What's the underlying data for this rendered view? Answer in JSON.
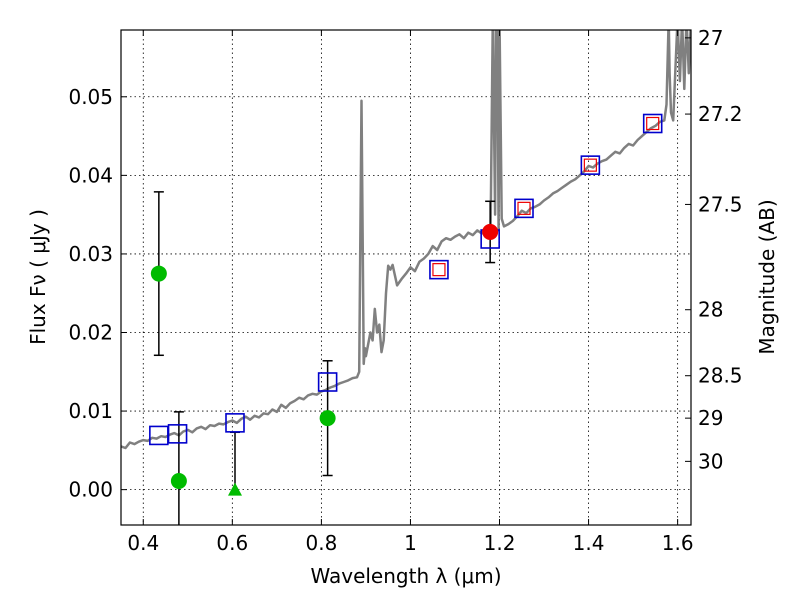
{
  "chart_data": {
    "type": "scatter",
    "title": "",
    "xlabel": "Wavelength  λ (μm)",
    "ylabel": "Flux  Fν  ( μJy )",
    "ylabel_right": "Magnitude (AB)",
    "xlim": [
      0.35,
      1.63
    ],
    "ylim": [
      -0.0045,
      0.0585
    ],
    "grid": true,
    "x_ticks": [
      0.4,
      0.6,
      0.8,
      1.0,
      1.2,
      1.4,
      1.6
    ],
    "x_tick_labels": [
      "0.4",
      "0.6",
      "0.8",
      "1",
      "1.2",
      "1.4",
      "1.6"
    ],
    "y_ticks": [
      0.0,
      0.01,
      0.02,
      0.03,
      0.04,
      0.05
    ],
    "y_tick_labels": [
      "0.00",
      "0.01",
      "0.02",
      "0.03",
      "0.04",
      "0.05"
    ],
    "mag_ticks": [
      {
        "label": "27",
        "flux": 0.0575
      },
      {
        "label": "27.2",
        "flux": 0.0478
      },
      {
        "label": "27.5",
        "flux": 0.0363
      },
      {
        "label": "28",
        "flux": 0.0229
      },
      {
        "label": "28.5",
        "flux": 0.0145
      },
      {
        "label": "29",
        "flux": 0.0091
      },
      {
        "label": "30",
        "flux": 0.0036
      }
    ],
    "colors": {
      "model": "#808080",
      "model_photometry": "#0000cc",
      "observed": "#00bb00",
      "observed_red": "#ee0000",
      "errorbar": "#000000"
    },
    "series": [
      {
        "name": "model spectrum",
        "kind": "line",
        "x": [
          0.35,
          0.36,
          0.37,
          0.38,
          0.39,
          0.4,
          0.41,
          0.42,
          0.43,
          0.44,
          0.45,
          0.46,
          0.47,
          0.48,
          0.49,
          0.5,
          0.51,
          0.52,
          0.53,
          0.54,
          0.55,
          0.56,
          0.57,
          0.58,
          0.59,
          0.6,
          0.61,
          0.62,
          0.63,
          0.64,
          0.65,
          0.66,
          0.67,
          0.68,
          0.69,
          0.7,
          0.71,
          0.72,
          0.73,
          0.74,
          0.75,
          0.76,
          0.77,
          0.78,
          0.79,
          0.8,
          0.81,
          0.82,
          0.83,
          0.84,
          0.85,
          0.86,
          0.87,
          0.88,
          0.885,
          0.89,
          0.893,
          0.895,
          0.898,
          0.9,
          0.91,
          0.915,
          0.92,
          0.925,
          0.93,
          0.935,
          0.94,
          0.945,
          0.95,
          0.955,
          0.96,
          0.97,
          0.98,
          0.99,
          1.0,
          1.01,
          1.02,
          1.03,
          1.04,
          1.05,
          1.06,
          1.07,
          1.08,
          1.09,
          1.1,
          1.11,
          1.12,
          1.13,
          1.14,
          1.15,
          1.16,
          1.17,
          1.18,
          1.185,
          1.19,
          1.192,
          1.195,
          1.198,
          1.2,
          1.205,
          1.21,
          1.22,
          1.23,
          1.24,
          1.25,
          1.26,
          1.27,
          1.28,
          1.29,
          1.3,
          1.31,
          1.32,
          1.33,
          1.34,
          1.35,
          1.36,
          1.37,
          1.38,
          1.39,
          1.4,
          1.41,
          1.42,
          1.43,
          1.44,
          1.45,
          1.46,
          1.47,
          1.48,
          1.49,
          1.5,
          1.51,
          1.52,
          1.53,
          1.54,
          1.55,
          1.56,
          1.57,
          1.575,
          1.58,
          1.582,
          1.585,
          1.59,
          1.6,
          1.605,
          1.61,
          1.615,
          1.62,
          1.625,
          1.63
        ],
        "y": [
          0.0055,
          0.0053,
          0.006,
          0.0058,
          0.0061,
          0.0063,
          0.0062,
          0.0066,
          0.0065,
          0.0068,
          0.0067,
          0.007,
          0.0072,
          0.0069,
          0.0074,
          0.0076,
          0.0073,
          0.0078,
          0.008,
          0.0077,
          0.0082,
          0.0081,
          0.0084,
          0.0083,
          0.0086,
          0.0088,
          0.0085,
          0.009,
          0.0093,
          0.0089,
          0.0094,
          0.0092,
          0.0097,
          0.0096,
          0.0102,
          0.0099,
          0.0108,
          0.0104,
          0.011,
          0.0113,
          0.0117,
          0.0115,
          0.012,
          0.0122,
          0.0121,
          0.0125,
          0.0127,
          0.013,
          0.0132,
          0.0135,
          0.0137,
          0.0139,
          0.0142,
          0.0143,
          0.015,
          0.0495,
          0.03,
          0.016,
          0.018,
          0.017,
          0.02,
          0.019,
          0.023,
          0.02,
          0.021,
          0.0175,
          0.019,
          0.025,
          0.0285,
          0.028,
          0.0286,
          0.026,
          0.0268,
          0.0275,
          0.0283,
          0.0278,
          0.029,
          0.0294,
          0.03,
          0.031,
          0.0305,
          0.0316,
          0.032,
          0.0318,
          0.0322,
          0.0325,
          0.032,
          0.0327,
          0.0324,
          0.033,
          0.0326,
          0.0333,
          0.033,
          0.06,
          0.035,
          0.06,
          0.06,
          0.033,
          0.06,
          0.0345,
          0.0335,
          0.0338,
          0.0342,
          0.0348,
          0.0355,
          0.0352,
          0.0358,
          0.036,
          0.0363,
          0.0368,
          0.0372,
          0.0377,
          0.038,
          0.0384,
          0.0388,
          0.0392,
          0.0395,
          0.04,
          0.0405,
          0.0412,
          0.041,
          0.0415,
          0.0418,
          0.042,
          0.0425,
          0.043,
          0.0428,
          0.0435,
          0.044,
          0.0438,
          0.0445,
          0.045,
          0.0455,
          0.046,
          0.0463,
          0.0468,
          0.047,
          0.049,
          0.06,
          0.053,
          0.048,
          0.047,
          0.06,
          0.052,
          0.06,
          0.051,
          0.06,
          0.053,
          0.06
        ]
      },
      {
        "name": "model photometry",
        "kind": "open-square",
        "x": [
          0.435,
          0.477,
          0.606,
          0.814,
          1.064,
          1.179,
          1.255,
          1.404,
          1.544
        ],
        "y": [
          0.0069,
          0.0071,
          0.0085,
          0.0137,
          0.028,
          0.0319,
          0.0358,
          0.0413,
          0.0466
        ]
      },
      {
        "name": "observed photometry",
        "kind": "filled-circle",
        "x": [
          0.435,
          0.48,
          0.814,
          1.179
        ],
        "y": [
          0.0275,
          0.0011,
          0.0091,
          0.0328
        ],
        "yerr": [
          0.0104,
          0.0088,
          0.0073,
          0.0039
        ],
        "colors": [
          "#00bb00",
          "#00bb00",
          "#00bb00",
          "#ee0000"
        ]
      },
      {
        "name": "upper limit",
        "kind": "triangle",
        "x": [
          0.606
        ],
        "y": [
          0.0
        ],
        "yerr_up": [
          0.0073
        ]
      },
      {
        "name": "measured (inner squares)",
        "kind": "inner-square",
        "x": [
          1.064,
          1.255,
          1.404,
          1.544
        ],
        "y": [
          0.028,
          0.0358,
          0.0413,
          0.0466
        ]
      }
    ]
  }
}
